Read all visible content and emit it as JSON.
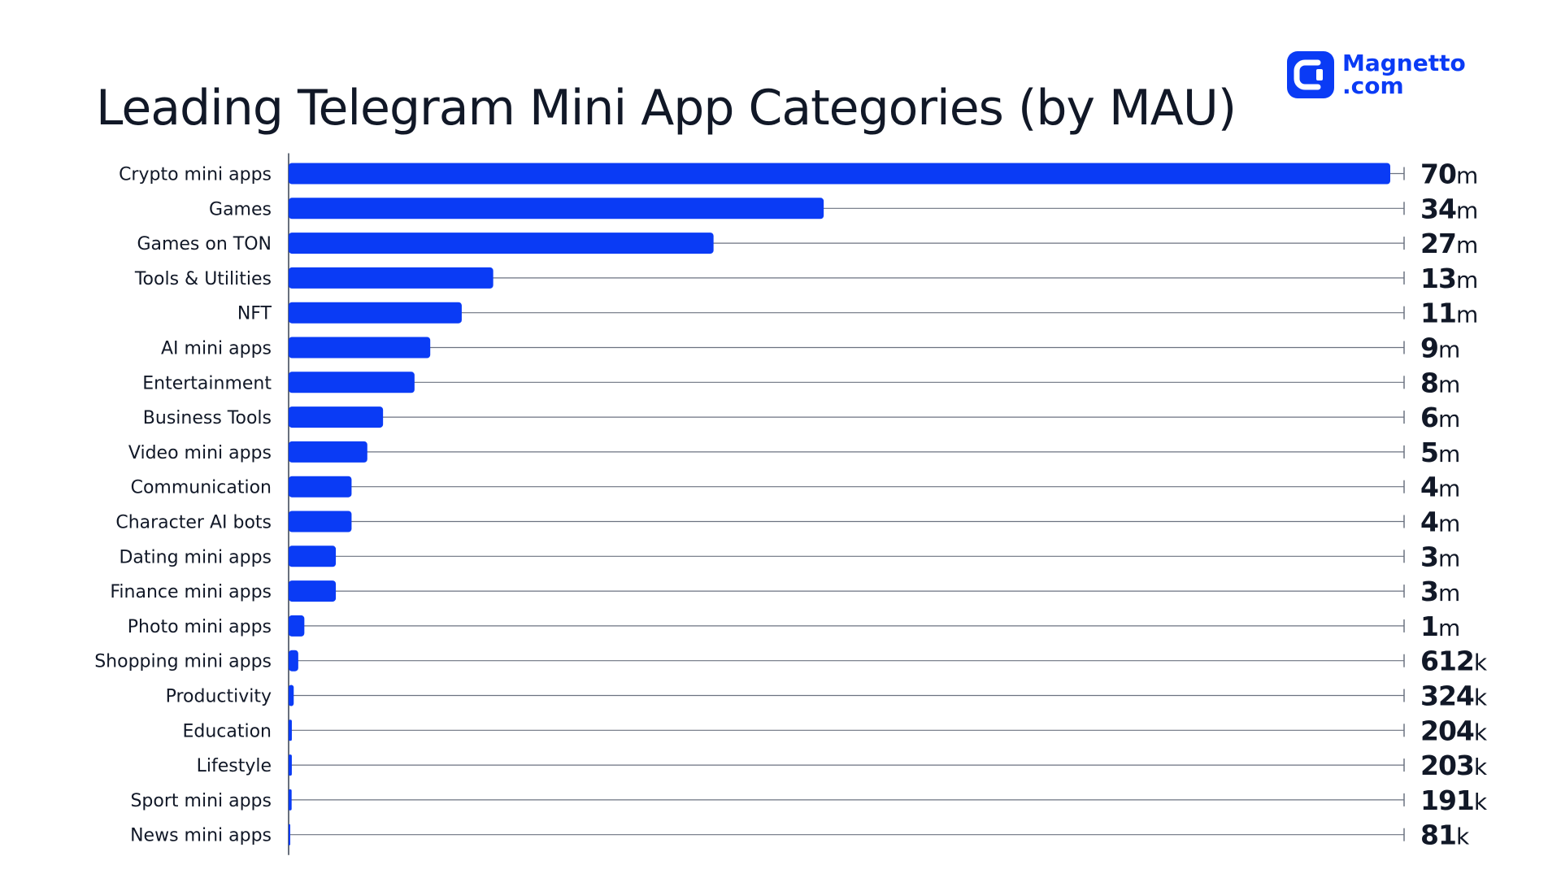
{
  "header": {
    "title": "Leading Telegram Mini App Categories (by MAU)",
    "brand_line1": "Magnetto",
    "brand_line2": ".com",
    "brand_icon": "magnetto-logo-icon"
  },
  "colors": {
    "bar": "#0a3bf5",
    "track": "#6b7280",
    "text": "#111827",
    "brand": "#0a3bf5"
  },
  "chart_data": {
    "type": "bar",
    "orientation": "horizontal",
    "title": "Leading Telegram Mini App Categories (by MAU)",
    "xlabel": "",
    "ylabel": "",
    "xlim": [
      0,
      70000000
    ],
    "grid": false,
    "legend": "none",
    "categories": [
      "Crypto mini apps",
      "Games",
      "Games on TON",
      "Tools & Utilities",
      "NFT",
      "AI mini apps",
      "Entertainment",
      "Business Tools",
      "Video mini apps",
      "Communication",
      "Character AI bots",
      "Dating mini apps",
      "Finance mini apps",
      "Photo mini apps",
      "Shopping mini apps",
      "Productivity",
      "Education",
      "Lifestyle",
      "Sport mini apps",
      "News mini apps"
    ],
    "values": [
      70000000,
      34000000,
      27000000,
      13000000,
      11000000,
      9000000,
      8000000,
      6000000,
      5000000,
      4000000,
      4000000,
      3000000,
      3000000,
      1000000,
      612000,
      324000,
      204000,
      203000,
      191000,
      81000
    ],
    "value_labels": [
      {
        "num": "70",
        "unit": "m"
      },
      {
        "num": "34",
        "unit": "m"
      },
      {
        "num": "27",
        "unit": "m"
      },
      {
        "num": "13",
        "unit": "m"
      },
      {
        "num": "11",
        "unit": "m"
      },
      {
        "num": "9",
        "unit": "m"
      },
      {
        "num": "8",
        "unit": "m"
      },
      {
        "num": "6",
        "unit": "m"
      },
      {
        "num": "5",
        "unit": "m"
      },
      {
        "num": "4",
        "unit": "m"
      },
      {
        "num": "4",
        "unit": "m"
      },
      {
        "num": "3",
        "unit": "m"
      },
      {
        "num": "3",
        "unit": "m"
      },
      {
        "num": "1",
        "unit": "m"
      },
      {
        "num": "612",
        "unit": "k"
      },
      {
        "num": "324",
        "unit": "k"
      },
      {
        "num": "204",
        "unit": "k"
      },
      {
        "num": "203",
        "unit": "k"
      },
      {
        "num": "191",
        "unit": "k"
      },
      {
        "num": "81",
        "unit": "k"
      }
    ]
  }
}
